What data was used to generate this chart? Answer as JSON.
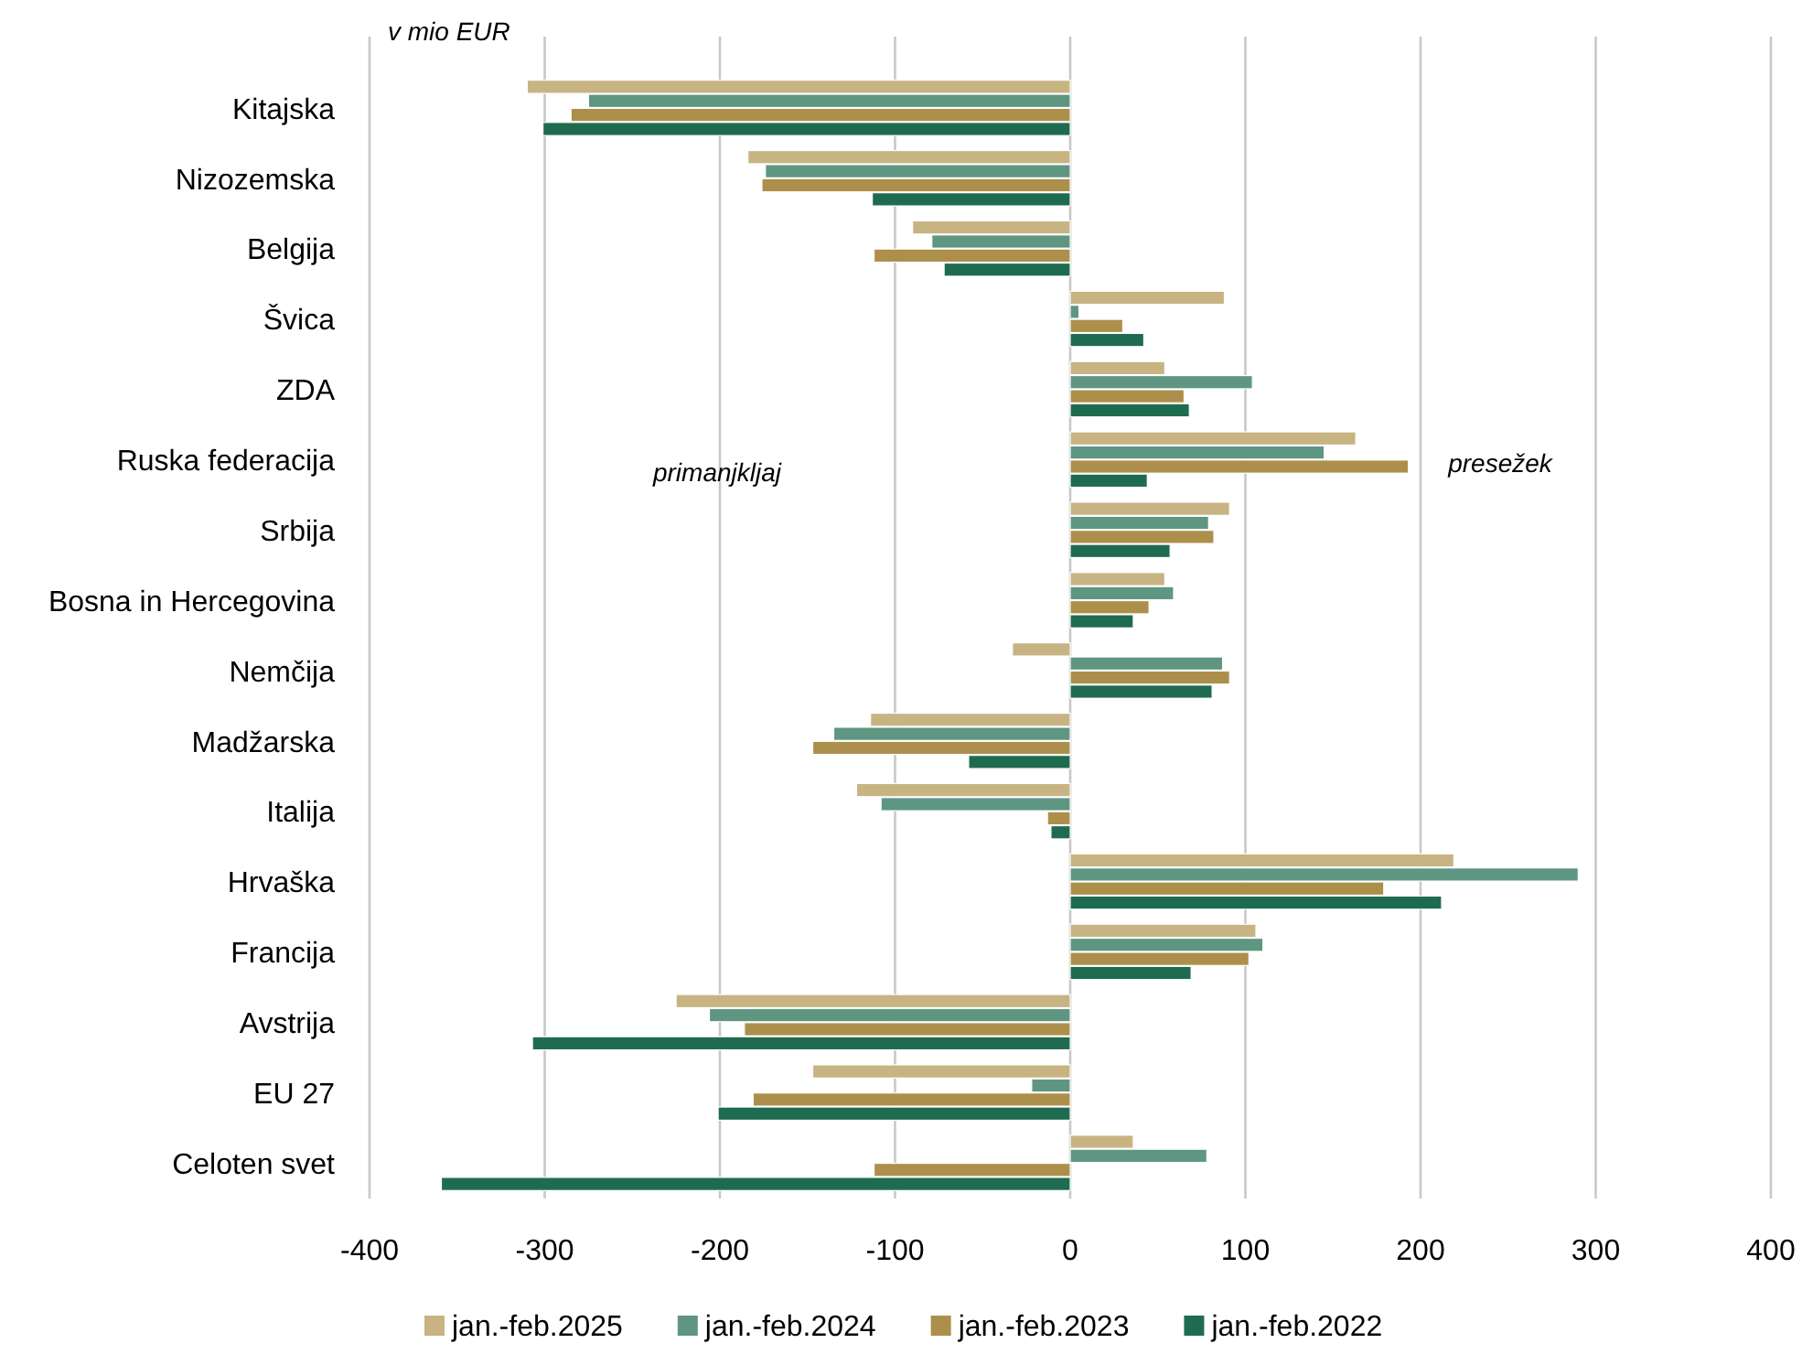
{
  "chart_data": {
    "type": "bar",
    "orientation": "horizontal",
    "categories": [
      "Kitajska",
      "Nizozemska",
      "Belgija",
      "Švica",
      "ZDA",
      "Ruska federacija",
      "Srbija",
      "Bosna in Hercegovina",
      "Nemčija",
      "Madžarska",
      "Italija",
      "Hrvaška",
      "Francija",
      "Avstrija",
      "EU 27",
      "Celoten svet"
    ],
    "series": [
      {
        "name": "jan.-feb.2025",
        "color": "#c8b482",
        "values": [
          -310,
          -184,
          -90,
          88,
          54,
          163,
          91,
          54,
          -33,
          -114,
          -122,
          219,
          106,
          -225,
          -147,
          36
        ]
      },
      {
        "name": "jan.-feb.2024",
        "color": "#5e9682",
        "values": [
          -275,
          -174,
          -79,
          5,
          104,
          145,
          79,
          59,
          87,
          -135,
          -108,
          290,
          110,
          -206,
          -22,
          78
        ]
      },
      {
        "name": "jan.-feb.2023",
        "color": "#ad8f4c",
        "values": [
          -285,
          -176,
          -112,
          30,
          65,
          193,
          82,
          45,
          91,
          -147,
          -13,
          179,
          102,
          -186,
          -181,
          -112
        ]
      },
      {
        "name": "jan.-feb.2022",
        "color": "#1f6b50",
        "values": [
          -301,
          -113,
          -72,
          42,
          68,
          44,
          57,
          36,
          81,
          -58,
          -11,
          212,
          69,
          -307,
          -201,
          -359
        ]
      }
    ],
    "xlim": [
      -400,
      400
    ],
    "xticks": [
      -400,
      -300,
      -200,
      -100,
      0,
      100,
      200,
      300,
      400
    ],
    "grid": "x",
    "legend": "bottom",
    "annotations": [
      "v mio EUR",
      "primanjkljaj",
      "presežek"
    ]
  }
}
